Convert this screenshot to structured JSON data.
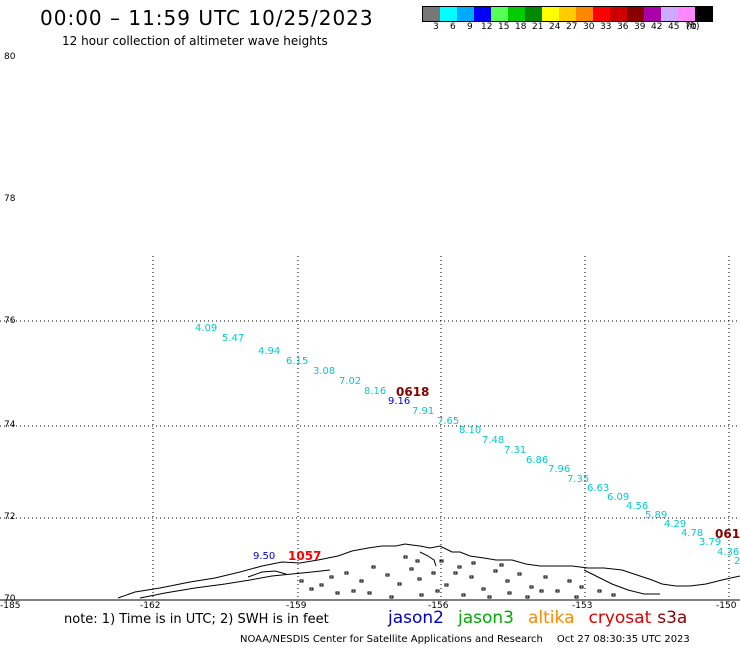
{
  "title": "00:00 – 11:59 UTC 10/25/2023",
  "subtitle": "12 hour collection of altimeter wave heights",
  "legend": {
    "colors": [
      "#777777",
      "#00ffff",
      "#00aaff",
      "#0000ff",
      "#55ff55",
      "#00cc00",
      "#008800",
      "#ffff00",
      "#ffcc00",
      "#ff8800",
      "#ff0000",
      "#cc0000",
      "#880000",
      "#aa00aa",
      "#ccaaff",
      "#ff88ff",
      "#000000"
    ],
    "labels": [
      "3",
      "6",
      "9",
      "12",
      "15",
      "18",
      "21",
      "24",
      "27",
      "30",
      "33",
      "36",
      "39",
      "42",
      "45",
      "70",
      "(ft)"
    ]
  },
  "lat_labels": [
    "80",
    "78",
    "76",
    "74",
    "72",
    "70"
  ],
  "lon_labels": [
    "-185",
    "-162",
    "-159",
    "-156",
    "-153",
    "-150"
  ],
  "track_values": [
    {
      "text": "4.09",
      "color": "#00cccc"
    },
    {
      "text": "5.47",
      "color": "#00cccc"
    },
    {
      "text": "4.94",
      "color": "#00cccc"
    },
    {
      "text": "6.15",
      "color": "#00cccc"
    },
    {
      "text": "3.08",
      "color": "#00cccc"
    },
    {
      "text": "7.02",
      "color": "#00cccc"
    },
    {
      "text": "8.16",
      "color": "#00cccc"
    },
    {
      "text": "9.16",
      "color": "#0000cc"
    },
    {
      "text": "7.91",
      "color": "#00cccc"
    },
    {
      "text": "7.65",
      "color": "#00cccc"
    },
    {
      "text": "8.10",
      "color": "#00cccc"
    },
    {
      "text": "7.48",
      "color": "#00cccc"
    },
    {
      "text": "7.31",
      "color": "#00cccc"
    },
    {
      "text": "6.86",
      "color": "#00cccc"
    },
    {
      "text": "7.96",
      "color": "#00cccc"
    },
    {
      "text": "7.35",
      "color": "#00cccc"
    },
    {
      "text": "6.63",
      "color": "#00cccc"
    },
    {
      "text": "6.09",
      "color": "#00cccc"
    },
    {
      "text": "4.56",
      "color": "#00cccc"
    },
    {
      "text": "5.89",
      "color": "#00cccc"
    },
    {
      "text": "4.29",
      "color": "#00cccc"
    },
    {
      "text": "4.78",
      "color": "#00cccc"
    },
    {
      "text": "3.79",
      "color": "#00cccc"
    },
    {
      "text": "4.36",
      "color": "#00cccc"
    },
    {
      "text": "2",
      "color": "#00cccc"
    },
    {
      "text": "9.50",
      "color": "#0000cc"
    }
  ],
  "pass_times": [
    {
      "text": "0618",
      "color": "#880000"
    },
    {
      "text": "061",
      "color": "#880000"
    },
    {
      "text": "1057",
      "color": "#ff0000"
    }
  ],
  "note": "note: 1) Time is in UTC; 2) SWH is in feet",
  "satellites": [
    {
      "name": "jason2",
      "color": "#0000cc"
    },
    {
      "name": "jason3",
      "color": "#00aa00"
    },
    {
      "name": "altika",
      "color": "#ff8800"
    },
    {
      "name": "cryosat",
      "color": "#dd0000"
    },
    {
      "name": "s3a",
      "color": "#880000"
    }
  ],
  "credit": "NOAA/NESDIS Center for Satellite Applications and Research",
  "timestamp": "Oct 27 08:30:35 UTC 2023"
}
